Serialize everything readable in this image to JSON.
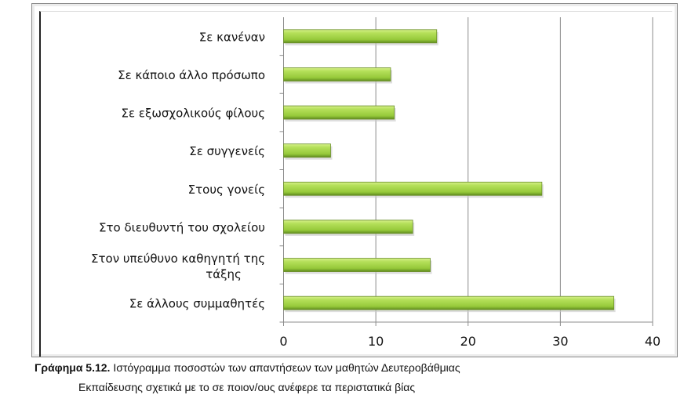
{
  "chart_data": {
    "type": "bar",
    "orientation": "horizontal",
    "categories": [
      "Σε κανέναν",
      "Σε κάποιο άλλο πρόσωπο",
      "Σε εξωσχολικούς φίλους",
      "Σε συγγενείς",
      "Στους γονείς",
      "Στο διευθυντή του σχολείου",
      "Στον υπεύθυνο καθηγητή της τάξης",
      "Σε άλλους συμμαθητές"
    ],
    "values": [
      16.6,
      11.6,
      12.0,
      5.1,
      28.0,
      14.0,
      15.9,
      35.8
    ],
    "xlim": [
      0,
      40
    ],
    "xticks": [
      "0",
      "10",
      "20",
      "30",
      "40"
    ],
    "grid": true,
    "bar_color": "#9acd3c",
    "title": "",
    "xlabel": "",
    "ylabel": ""
  },
  "caption": {
    "label": "Γράφημα 5.12.",
    "line1": "Ιστόγραμμα ποσοστών των απαντήσεων των μαθητών Δευτεροβάθμιας",
    "line2": "Εκπαίδευσης σχετικά με το σε ποιον/ους ανέφερε τα περιστατικά βίας"
  }
}
